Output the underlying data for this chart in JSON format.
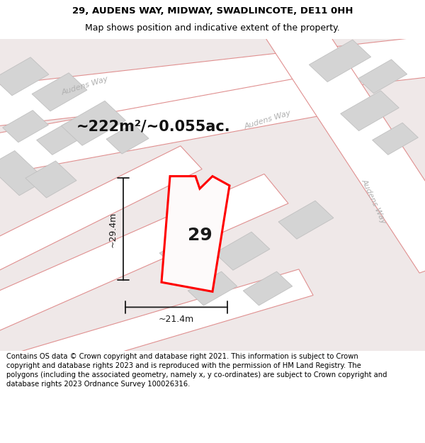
{
  "title_line1": "29, AUDENS WAY, MIDWAY, SWADLINCOTE, DE11 0HH",
  "title_line2": "Map shows position and indicative extent of the property.",
  "footer_text": "Contains OS data © Crown copyright and database right 2021. This information is subject to Crown copyright and database rights 2023 and is reproduced with the permission of HM Land Registry. The polygons (including the associated geometry, namely x, y co-ordinates) are subject to Crown copyright and database rights 2023 Ordnance Survey 100026316.",
  "area_label": "~222m²/~0.055ac.",
  "width_label": "~21.4m",
  "height_label": "~29.4m",
  "plot_number": "29",
  "map_bg": "#f2eded",
  "road_fill": "#ffffff",
  "road_edge": "#e09090",
  "building_fill": "#d4d4d4",
  "building_edge": "#c0c0c0",
  "property_edge": "#ff0000",
  "property_fill": "#ffffff",
  "dim_color": "#1a1a1a",
  "street_color": "#b0b0b0",
  "title_fontsize": 9.5,
  "subtitle_fontsize": 9,
  "footer_fontsize": 7.2,
  "area_fontsize": 15,
  "dim_fontsize": 9,
  "plot_fontsize": 18
}
